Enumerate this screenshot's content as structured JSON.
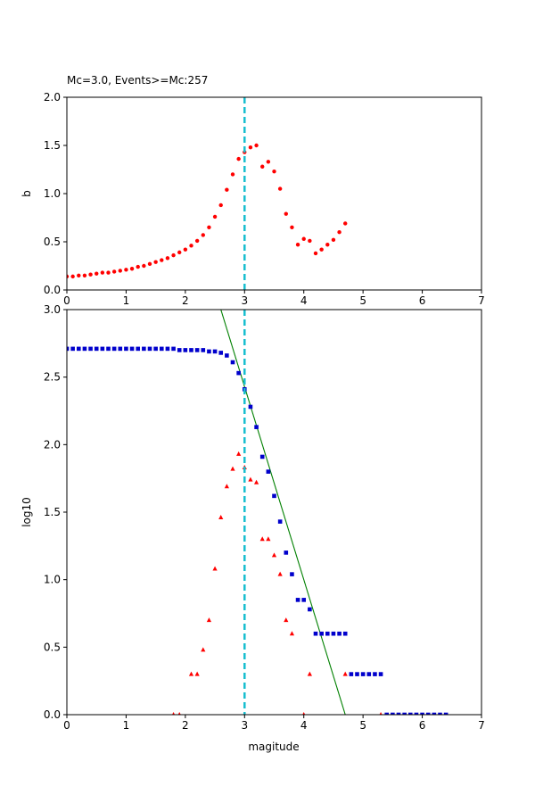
{
  "chart_data": [
    {
      "type": "scatter",
      "title": "Mc=3.0, Events>=Mc:257",
      "xlabel": "",
      "ylabel": "b",
      "xlim": [
        0,
        7
      ],
      "ylim": [
        0,
        2.0
      ],
      "xticks": [
        "0",
        "1",
        "2",
        "3",
        "4",
        "5",
        "6",
        "7"
      ],
      "yticks": [
        "0.0",
        "0.5",
        "1.0",
        "1.5",
        "2.0"
      ],
      "mc_line": {
        "x": 3.0,
        "color": "#17becf"
      },
      "series": [
        {
          "marker": "circle",
          "color": "#ff0000",
          "x": [
            0.0,
            0.1,
            0.2,
            0.3,
            0.4,
            0.5,
            0.6,
            0.7,
            0.8,
            0.9,
            1.0,
            1.1,
            1.2,
            1.3,
            1.4,
            1.5,
            1.6,
            1.7,
            1.8,
            1.9,
            2.0,
            2.1,
            2.2,
            2.3,
            2.4,
            2.5,
            2.6,
            2.7,
            2.8,
            2.9,
            3.0,
            3.1,
            3.2,
            3.3,
            3.4,
            3.5,
            3.6,
            3.7,
            3.8,
            3.9,
            4.0,
            4.1,
            4.2,
            4.3,
            4.4,
            4.5,
            4.6,
            4.7
          ],
          "y": [
            0.14,
            0.14,
            0.15,
            0.15,
            0.16,
            0.17,
            0.18,
            0.18,
            0.19,
            0.2,
            0.21,
            0.22,
            0.24,
            0.25,
            0.27,
            0.29,
            0.31,
            0.33,
            0.36,
            0.39,
            0.42,
            0.46,
            0.51,
            0.57,
            0.65,
            0.76,
            0.88,
            1.04,
            1.2,
            1.36,
            1.43,
            1.48,
            1.5,
            1.28,
            1.33,
            1.23,
            1.05,
            0.79,
            0.65,
            0.47,
            0.53,
            0.51,
            0.38,
            0.42,
            0.47,
            0.52,
            0.6,
            0.69
          ]
        }
      ]
    },
    {
      "type": "scatter",
      "title": "",
      "xlabel": "magitude",
      "ylabel": "log10",
      "xlim": [
        0,
        7
      ],
      "ylim": [
        0,
        3.0
      ],
      "xticks": [
        "0",
        "1",
        "2",
        "3",
        "4",
        "5",
        "6",
        "7"
      ],
      "yticks": [
        "0.0",
        "0.5",
        "1.0",
        "1.5",
        "2.0",
        "2.5",
        "3.0"
      ],
      "mc_line": {
        "x": 3.0,
        "color": "#17becf"
      },
      "fit_line": {
        "color": "#008000",
        "x": [
          2.6,
          4.7
        ],
        "y": [
          3.0,
          0.0
        ]
      },
      "series": [
        {
          "marker": "square",
          "color": "#0000cc",
          "x": [
            0.0,
            0.1,
            0.2,
            0.3,
            0.4,
            0.5,
            0.6,
            0.7,
            0.8,
            0.9,
            1.0,
            1.1,
            1.2,
            1.3,
            1.4,
            1.5,
            1.6,
            1.7,
            1.8,
            1.9,
            2.0,
            2.1,
            2.2,
            2.3,
            2.4,
            2.5,
            2.6,
            2.7,
            2.8,
            2.9,
            3.0,
            3.1,
            3.2,
            3.3,
            3.4,
            3.5,
            3.6,
            3.7,
            3.8,
            3.9,
            4.0,
            4.1,
            4.2,
            4.3,
            4.4,
            4.5,
            4.6,
            4.7,
            4.8,
            4.9,
            5.0,
            5.1,
            5.2,
            5.3,
            5.4,
            5.5,
            5.6,
            5.7,
            5.8,
            5.9,
            6.0,
            6.1,
            6.2,
            6.3,
            6.4
          ],
          "y": [
            2.71,
            2.71,
            2.71,
            2.71,
            2.71,
            2.71,
            2.71,
            2.71,
            2.71,
            2.71,
            2.71,
            2.71,
            2.71,
            2.71,
            2.71,
            2.71,
            2.71,
            2.71,
            2.71,
            2.7,
            2.7,
            2.7,
            2.7,
            2.7,
            2.69,
            2.69,
            2.68,
            2.66,
            2.61,
            2.53,
            2.41,
            2.28,
            2.13,
            1.91,
            1.8,
            1.62,
            1.43,
            1.2,
            1.04,
            0.85,
            0.85,
            0.78,
            0.6,
            0.6,
            0.6,
            0.6,
            0.6,
            0.6,
            0.3,
            0.3,
            0.3,
            0.3,
            0.3,
            0.3,
            0.0,
            0.0,
            0.0,
            0.0,
            0.0,
            0.0,
            0.0,
            0.0,
            0.0,
            0.0,
            0.0
          ]
        },
        {
          "marker": "triangle",
          "color": "#ff0000",
          "x": [
            1.8,
            1.9,
            2.1,
            2.2,
            2.3,
            2.4,
            2.5,
            2.6,
            2.7,
            2.8,
            2.9,
            3.0,
            3.1,
            3.2,
            3.3,
            3.4,
            3.5,
            3.6,
            3.7,
            3.8,
            4.0,
            4.1,
            4.7,
            5.3
          ],
          "y": [
            0.0,
            0.0,
            0.3,
            0.3,
            0.48,
            0.7,
            1.08,
            1.46,
            1.69,
            1.82,
            1.93,
            1.83,
            1.74,
            1.72,
            1.3,
            1.3,
            1.18,
            1.04,
            0.7,
            0.6,
            0.0,
            0.3,
            0.3,
            0.0
          ]
        }
      ]
    }
  ]
}
